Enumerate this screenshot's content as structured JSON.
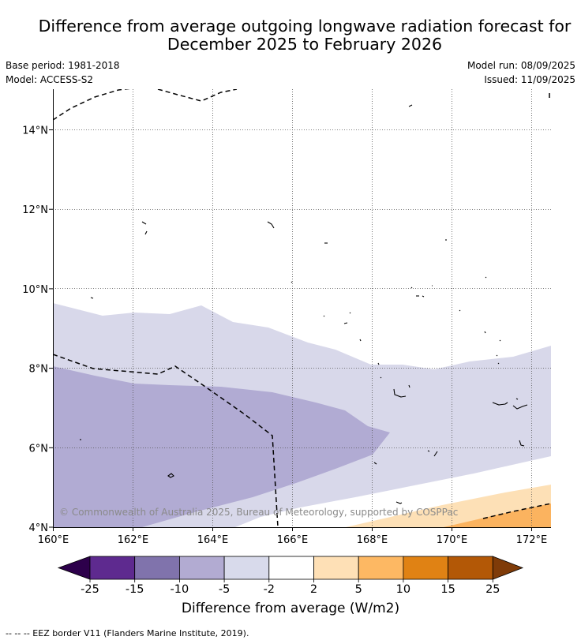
{
  "title": {
    "line1": "Difference from average outgoing longwave radiation forecast for",
    "line2": "December 2025 to February 2026"
  },
  "meta": {
    "base_period": "Base period: 1981-2018",
    "model": "Model: ACCESS-S2",
    "model_run": "Model run: 08/09/2025",
    "issued": "Issued: 11/09/2025"
  },
  "map": {
    "x_ticks": [
      "160°E",
      "162°E",
      "164°E",
      "166°E",
      "168°E",
      "170°E",
      "172°E"
    ],
    "y_ticks": [
      "14°N",
      "12°N",
      "10°N",
      "8°N",
      "6°N",
      "4°N"
    ],
    "copyright": "© Commonwealth of Australia 2025, Bureau of Meteorology, supported by COSPPac",
    "colors": {
      "minus5_to_minus2": "#d8d8ea",
      "minus10_to_minus5": "#b1abd3",
      "plus2_to_plus5": "#fde0b6",
      "plus5_to_plus10": "#fbb35f"
    }
  },
  "colorbar": {
    "title": "Difference from average (W/m2)",
    "tick_labels": [
      "-25",
      "-15",
      "-10",
      "-5",
      "-2",
      "2",
      "5",
      "10",
      "15",
      "25"
    ],
    "colors": [
      "#2d004b",
      "#5e2a8f",
      "#8073ac",
      "#b2abd2",
      "#d8daeb",
      "#ffffff",
      "#fee0b6",
      "#fdb863",
      "#e08214",
      "#b35806",
      "#7f3b08"
    ]
  },
  "footnote": "--  --  -- EEZ border V11 (Flanders Marine Institute, 2019)."
}
